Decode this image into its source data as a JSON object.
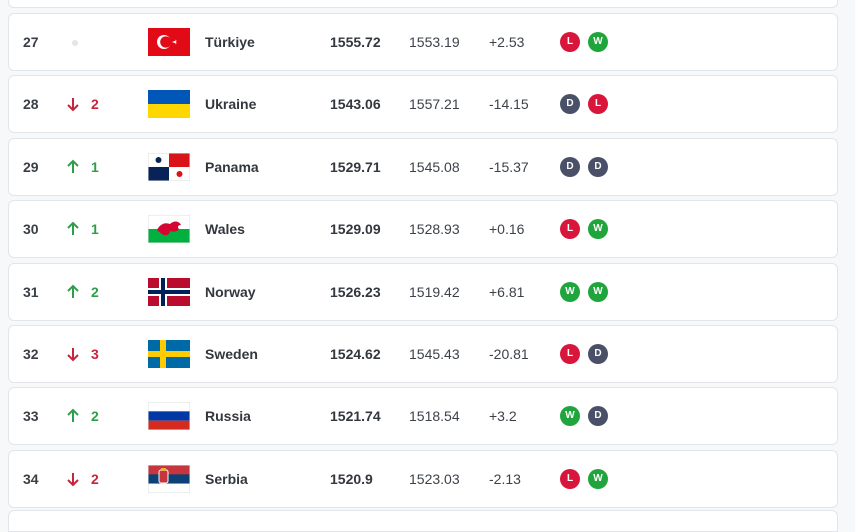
{
  "rows": [
    {
      "rank": "27",
      "country": "Türkiye",
      "points": "1555.72",
      "previous": "1553.19",
      "diff": "+2.53",
      "form": [
        "L",
        "W"
      ]
    },
    {
      "rank": "28",
      "change": "2",
      "country": "Ukraine",
      "points": "1543.06",
      "previous": "1557.21",
      "diff": "-14.15",
      "form": [
        "D",
        "L"
      ]
    },
    {
      "rank": "29",
      "change": "1",
      "country": "Panama",
      "points": "1529.71",
      "previous": "1545.08",
      "diff": "-15.37",
      "form": [
        "D",
        "D"
      ]
    },
    {
      "rank": "30",
      "change": "1",
      "country": "Wales",
      "points": "1529.09",
      "previous": "1528.93",
      "diff": "+0.16",
      "form": [
        "L",
        "W"
      ]
    },
    {
      "rank": "31",
      "change": "2",
      "country": "Norway",
      "points": "1526.23",
      "previous": "1519.42",
      "diff": "+6.81",
      "form": [
        "W",
        "W"
      ]
    },
    {
      "rank": "32",
      "change": "3",
      "country": "Sweden",
      "points": "1524.62",
      "previous": "1545.43",
      "diff": "-20.81",
      "form": [
        "L",
        "D"
      ]
    },
    {
      "rank": "33",
      "change": "2",
      "country": "Russia",
      "points": "1521.74",
      "previous": "1518.54",
      "diff": "+3.2",
      "form": [
        "W",
        "D"
      ]
    },
    {
      "rank": "34",
      "change": "2",
      "country": "Serbia",
      "points": "1520.9",
      "previous": "1523.03",
      "diff": "-2.13",
      "form": [
        "L",
        "W"
      ]
    }
  ]
}
